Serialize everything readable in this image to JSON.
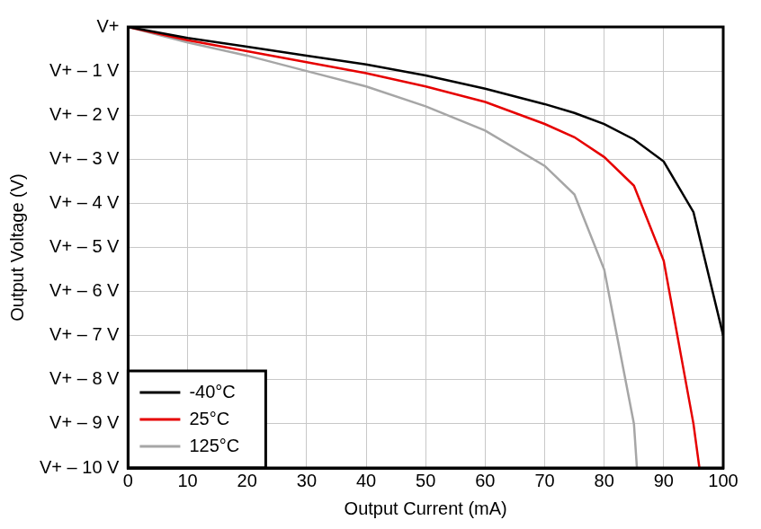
{
  "chart_data": {
    "type": "line",
    "x_label": "Output Current (mA)",
    "y_label": "Output Voltage (V)",
    "xlim": [
      0,
      100
    ],
    "xticks": [
      0,
      10,
      20,
      30,
      40,
      50,
      60,
      70,
      80,
      90,
      100
    ],
    "ylim": [
      -10,
      0
    ],
    "yticks": [
      {
        "value": 0,
        "label": "V+"
      },
      {
        "value": -1,
        "label": "V+ – 1 V"
      },
      {
        "value": -2,
        "label": "V+ – 2 V"
      },
      {
        "value": -3,
        "label": "V+ – 3 V"
      },
      {
        "value": -4,
        "label": "V+ – 4 V"
      },
      {
        "value": -5,
        "label": "V+ – 5 V"
      },
      {
        "value": -6,
        "label": "V+ – 6 V"
      },
      {
        "value": -7,
        "label": "V+ – 7 V"
      },
      {
        "value": -8,
        "label": "V+ – 8 V"
      },
      {
        "value": -9,
        "label": "V+ – 9 V"
      },
      {
        "value": -10,
        "label": "V+ – 10 V"
      }
    ],
    "grid": true,
    "legend": "lower left",
    "series": [
      {
        "name": "-40°C",
        "color": "#000000",
        "x": [
          0,
          10,
          20,
          25,
          30,
          40,
          50,
          60,
          70,
          75,
          80,
          85,
          90,
          95,
          100
        ],
        "values": [
          0,
          -0.25,
          -0.45,
          -0.55,
          -0.65,
          -0.85,
          -1.1,
          -1.4,
          -1.75,
          -1.95,
          -2.2,
          -2.55,
          -3.05,
          -4.2,
          -7.0
        ]
      },
      {
        "name": "25°C",
        "color": "#e60000",
        "x": [
          0,
          10,
          20,
          30,
          40,
          50,
          60,
          70,
          75,
          80,
          85,
          90,
          95,
          96
        ],
        "values": [
          0,
          -0.3,
          -0.55,
          -0.8,
          -1.05,
          -1.35,
          -1.7,
          -2.2,
          -2.5,
          -2.95,
          -3.6,
          -5.3,
          -9.0,
          -10
        ]
      },
      {
        "name": "125°C",
        "color": "#a6a6a6",
        "x": [
          0,
          10,
          20,
          30,
          40,
          50,
          60,
          70,
          75,
          80,
          85,
          85.5
        ],
        "values": [
          0,
          -0.35,
          -0.65,
          -1.0,
          -1.35,
          -1.8,
          -2.35,
          -3.15,
          -3.8,
          -5.5,
          -9.0,
          -10
        ]
      }
    ]
  }
}
